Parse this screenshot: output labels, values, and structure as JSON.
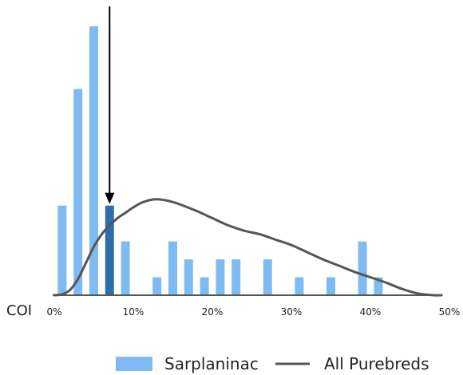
{
  "chart_data": {
    "type": "bar",
    "xlabel": "COI",
    "xlim": [
      0,
      50
    ],
    "x_ticks": [
      "0%",
      "10%",
      "20%",
      "30%",
      "40%",
      "50%"
    ],
    "x_tick_values": [
      0,
      10,
      20,
      30,
      40,
      50
    ],
    "ylim": [
      0,
      15
    ],
    "grid": false,
    "legend_position": "bottom-right",
    "callout": {
      "label": "",
      "x": 7,
      "note": "arrow points to highlighted bar"
    },
    "series": [
      {
        "name": "Sarplaninac",
        "type": "bar",
        "color": "#7fbbf2",
        "highlight_color": "#2e6ead",
        "highlight_x": 7,
        "x": [
          1,
          3,
          5,
          7,
          9,
          13,
          15,
          17,
          19,
          21,
          23,
          27,
          31,
          35,
          39,
          41
        ],
        "values": [
          5,
          11.5,
          15,
          5,
          3,
          1,
          3,
          2,
          1,
          2,
          2,
          2,
          1,
          1,
          3,
          1
        ]
      },
      {
        "name": "All Purebreds",
        "type": "line",
        "color": "#555555",
        "x": [
          0,
          1,
          2,
          3,
          4,
          5,
          6,
          7,
          8,
          9,
          10,
          11,
          12,
          13,
          14,
          15,
          16,
          18,
          20,
          22,
          24,
          26,
          28,
          30,
          32,
          34,
          36,
          38,
          40,
          42,
          44,
          46,
          48,
          49
        ],
        "values": [
          0,
          0.05,
          0.3,
          0.9,
          1.8,
          2.7,
          3.4,
          3.9,
          4.3,
          4.6,
          4.9,
          5.15,
          5.3,
          5.35,
          5.3,
          5.2,
          5.05,
          4.7,
          4.3,
          3.9,
          3.6,
          3.4,
          3.1,
          2.8,
          2.4,
          2.0,
          1.65,
          1.3,
          1.0,
          0.7,
          0.35,
          0.1,
          0.0,
          0.0
        ]
      }
    ]
  }
}
